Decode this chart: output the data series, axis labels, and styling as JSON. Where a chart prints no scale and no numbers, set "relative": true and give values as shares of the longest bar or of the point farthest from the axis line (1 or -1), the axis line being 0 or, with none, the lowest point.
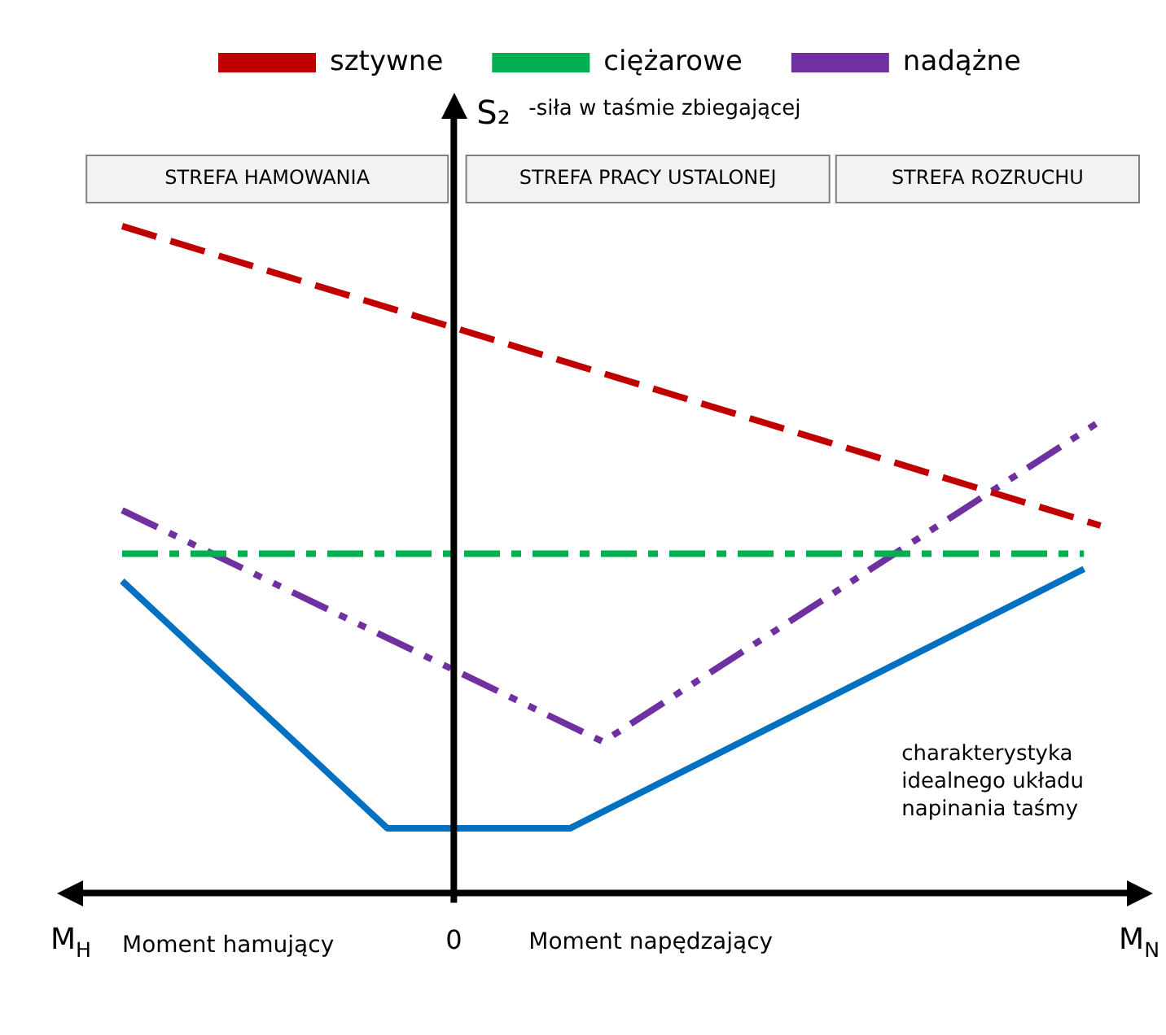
{
  "chart_data": {
    "type": "line",
    "relative": true,
    "legend": "top",
    "marker": "none",
    "grid": false,
    "ylabel": "S₂",
    "categories": [
      null,
      null,
      null,
      null,
      null,
      null,
      null,
      null,
      null,
      null,
      null,
      null,
      null,
      null,
      null,
      null,
      null,
      null,
      null,
      null,
      null,
      null,
      null,
      null,
      null,
      null,
      null,
      null,
      null,
      null,
      null,
      null,
      null,
      null,
      null,
      null,
      null,
      null,
      null,
      null,
      null,
      null,
      null,
      null,
      null,
      null,
      null,
      null,
      null,
      null,
      null,
      null,
      null,
      null,
      null,
      null,
      null,
      null,
      null,
      null,
      null
    ],
    "series": [
      {
        "name": "sztywne",
        "color": "#c00000",
        "line_style": "dashed",
        "values": [
          1.0,
          null,
          null,
          null,
          null,
          null,
          null,
          null,
          null,
          null,
          null,
          null,
          null,
          null,
          null,
          null,
          null,
          null,
          null,
          null,
          null,
          null,
          null,
          null,
          null,
          null,
          null,
          null,
          null,
          null,
          null,
          null,
          null,
          null,
          null,
          null,
          null,
          null,
          null,
          null,
          null,
          null,
          null,
          null,
          null,
          null,
          null,
          null,
          null,
          null,
          null,
          null,
          null,
          null,
          null,
          null,
          null,
          null,
          null,
          0.551,
          null
        ]
      },
      {
        "name": "ciężarowe",
        "color": "#00b050",
        "line_style": "dashdot",
        "values": [
          0.509,
          null,
          null,
          null,
          null,
          null,
          null,
          null,
          null,
          null,
          null,
          null,
          null,
          null,
          null,
          null,
          null,
          null,
          null,
          null,
          null,
          null,
          null,
          null,
          null,
          null,
          null,
          null,
          null,
          null,
          null,
          null,
          null,
          null,
          null,
          null,
          null,
          null,
          null,
          null,
          null,
          null,
          null,
          null,
          null,
          null,
          null,
          null,
          null,
          null,
          null,
          null,
          null,
          null,
          null,
          null,
          null,
          null,
          0.509,
          null,
          null
        ]
      },
      {
        "name": "nadążne",
        "color": "#7030a0",
        "line_style": "dashdotdot",
        "values": [
          0.574,
          null,
          null,
          null,
          null,
          null,
          null,
          null,
          null,
          null,
          null,
          null,
          null,
          null,
          null,
          null,
          null,
          null,
          null,
          null,
          null,
          null,
          null,
          null,
          null,
          null,
          null,
          null,
          null,
          0.227,
          null,
          null,
          null,
          null,
          null,
          null,
          null,
          null,
          null,
          null,
          null,
          null,
          null,
          null,
          null,
          null,
          null,
          null,
          null,
          null,
          null,
          null,
          null,
          null,
          null,
          null,
          null,
          null,
          null,
          0.708,
          null
        ]
      },
      {
        "color": "#0070c0",
        "line_style": "solid",
        "values": [
          0.468,
          null,
          null,
          null,
          null,
          null,
          null,
          null,
          null,
          null,
          null,
          null,
          null,
          null,
          null,
          null,
          0.097,
          null,
          null,
          null,
          null,
          null,
          null,
          null,
          null,
          null,
          null,
          0.097,
          null,
          null,
          null,
          null,
          null,
          null,
          null,
          null,
          null,
          null,
          null,
          null,
          null,
          null,
          null,
          null,
          null,
          null,
          null,
          null,
          null,
          null,
          null,
          null,
          null,
          null,
          null,
          null,
          null,
          null,
          0.486,
          null,
          null
        ]
      }
    ],
    "annotations": [
      "0",
      "-siła w taśmie zbiegającej",
      "STREFA HAMOWANIA",
      "STREFA PRACY USTALONEJ",
      "STREFA ROZRUCHU",
      "M$_{H}$",
      "Moment hamujący",
      "Moment napędzający",
      "M$_{N}$",
      "charakterystyka idealnego układu napinania taśmy"
    ]
  }
}
